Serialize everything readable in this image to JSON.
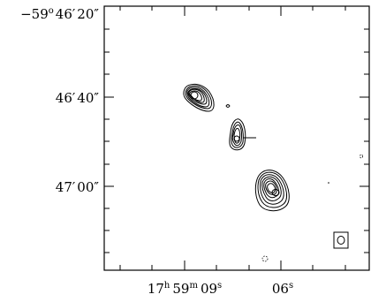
{
  "y_ticks": [
    {
      "deg_sign": "−59",
      "deg_unit": "o",
      "min": "46",
      "min_unit": "′",
      "sec": "20",
      "sec_unit": "″"
    },
    {
      "min": "46",
      "min_unit": "′",
      "sec": "40",
      "sec_unit": "″"
    },
    {
      "min": "47",
      "min_unit": "′",
      "sec": "00",
      "sec_unit": "″"
    }
  ],
  "x_ticks": [
    {
      "h": "17",
      "h_unit": "h",
      "m": "59",
      "m_unit": "m",
      "s": "09",
      "s_unit": "s"
    },
    {
      "s": "06",
      "s_unit": "s"
    }
  ]
}
